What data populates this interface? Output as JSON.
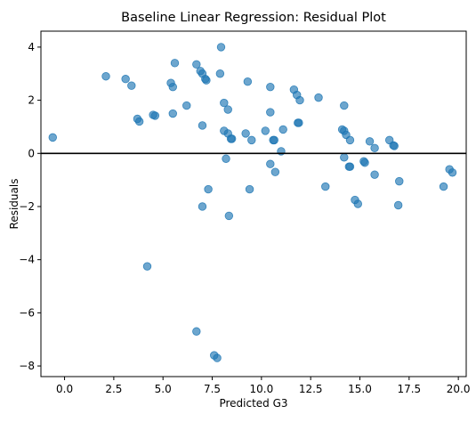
{
  "chart_data": {
    "type": "scatter",
    "title": "Baseline Linear Regression: Residual Plot",
    "xlabel": "Predicted G3",
    "ylabel": "Residuals",
    "xlim": [
      -1.2,
      20.4
    ],
    "ylim": [
      -8.4,
      4.6
    ],
    "xticks": [
      0.0,
      2.5,
      5.0,
      7.5,
      10.0,
      12.5,
      15.0,
      17.5,
      20.0
    ],
    "xtick_labels": [
      "0.0",
      "2.5",
      "5.0",
      "7.5",
      "10.0",
      "12.5",
      "15.0",
      "17.5",
      "20.0"
    ],
    "yticks": [
      4,
      2,
      0,
      -2,
      -4,
      -6,
      -8
    ],
    "ytick_labels": [
      "4",
      "2",
      "0",
      "−2",
      "−4",
      "−6",
      "−8"
    ],
    "reference_line": {
      "y": 0,
      "color": "#000000"
    },
    "grid": false,
    "legend": "none",
    "marker_color": "#1f77b4",
    "marker_alpha": 0.65,
    "points": [
      [
        -0.6,
        0.6
      ],
      [
        2.1,
        2.9
      ],
      [
        3.1,
        2.8
      ],
      [
        3.4,
        2.55
      ],
      [
        3.7,
        1.3
      ],
      [
        3.8,
        1.2
      ],
      [
        4.5,
        1.45
      ],
      [
        4.6,
        1.42
      ],
      [
        4.2,
        -4.25
      ],
      [
        5.4,
        2.65
      ],
      [
        5.5,
        2.5
      ],
      [
        5.6,
        3.4
      ],
      [
        5.5,
        1.5
      ],
      [
        6.2,
        1.8
      ],
      [
        6.7,
        3.35
      ],
      [
        6.9,
        3.1
      ],
      [
        7.0,
        3.0
      ],
      [
        7.15,
        2.8
      ],
      [
        7.2,
        2.75
      ],
      [
        7.95,
        4.0
      ],
      [
        7.9,
        3.0
      ],
      [
        7.0,
        1.05
      ],
      [
        8.1,
        1.9
      ],
      [
        8.3,
        1.65
      ],
      [
        8.1,
        0.85
      ],
      [
        8.3,
        0.75
      ],
      [
        8.45,
        0.55
      ],
      [
        8.5,
        0.55
      ],
      [
        8.2,
        -0.2
      ],
      [
        7.3,
        -1.35
      ],
      [
        7.0,
        -2.0
      ],
      [
        8.35,
        -2.35
      ],
      [
        6.7,
        -6.7
      ],
      [
        7.6,
        -7.6
      ],
      [
        7.75,
        -7.7
      ],
      [
        9.3,
        2.7
      ],
      [
        9.2,
        0.75
      ],
      [
        9.5,
        0.5
      ],
      [
        10.2,
        0.85
      ],
      [
        10.45,
        2.5
      ],
      [
        10.45,
        1.55
      ],
      [
        10.6,
        0.5
      ],
      [
        10.65,
        0.5
      ],
      [
        10.45,
        -0.4
      ],
      [
        10.7,
        -0.7
      ],
      [
        9.4,
        -1.35
      ],
      [
        11.0,
        0.08
      ],
      [
        11.1,
        0.9
      ],
      [
        11.65,
        2.4
      ],
      [
        11.8,
        2.2
      ],
      [
        11.95,
        2.0
      ],
      [
        11.85,
        1.15
      ],
      [
        11.9,
        1.15
      ],
      [
        12.9,
        2.1
      ],
      [
        13.25,
        -1.25
      ],
      [
        14.2,
        1.8
      ],
      [
        14.1,
        0.9
      ],
      [
        14.2,
        0.85
      ],
      [
        14.3,
        0.7
      ],
      [
        14.5,
        0.5
      ],
      [
        14.2,
        -0.15
      ],
      [
        14.45,
        -0.5
      ],
      [
        14.5,
        -0.5
      ],
      [
        14.75,
        -1.75
      ],
      [
        14.9,
        -1.9
      ],
      [
        15.2,
        -0.3
      ],
      [
        15.25,
        -0.35
      ],
      [
        15.5,
        0.45
      ],
      [
        15.75,
        0.2
      ],
      [
        15.75,
        -0.8
      ],
      [
        16.5,
        0.5
      ],
      [
        16.7,
        0.3
      ],
      [
        16.75,
        0.28
      ],
      [
        17.0,
        -1.05
      ],
      [
        16.95,
        -1.95
      ],
      [
        19.25,
        -1.25
      ],
      [
        19.55,
        -0.6
      ],
      [
        19.7,
        -0.72
      ]
    ]
  }
}
